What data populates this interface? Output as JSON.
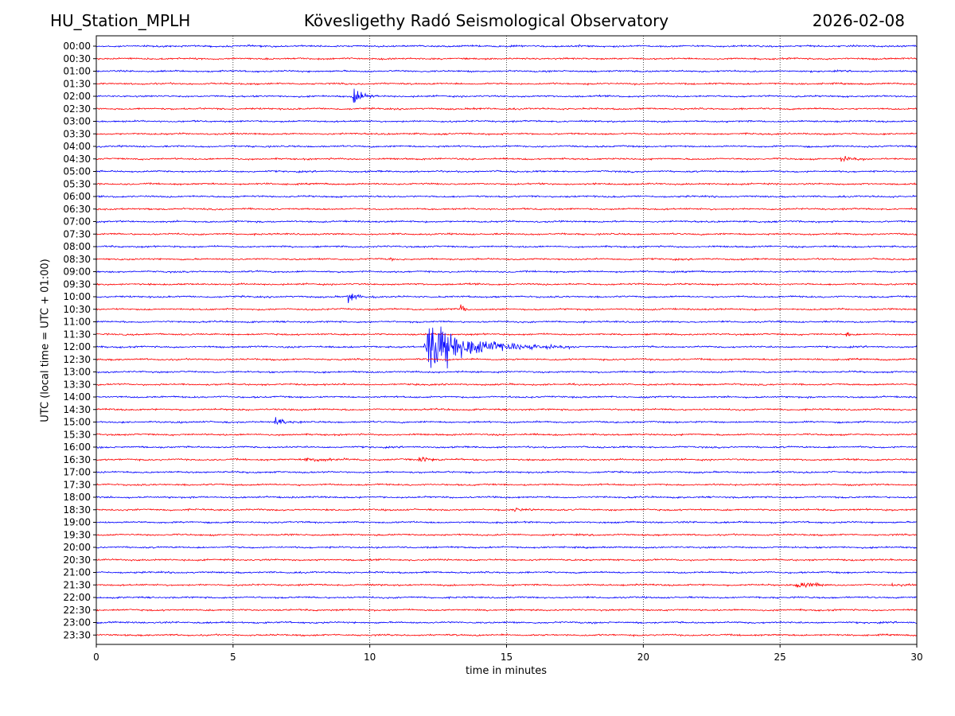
{
  "header": {
    "station": "HU_Station_MPLH",
    "observatory": "Kövesligethy Radó Seismological Observatory",
    "date": "2026-02-08"
  },
  "chart_data": {
    "type": "line",
    "title": "Kövesligethy Radó Seismological Observatory",
    "xlabel": "time in minutes",
    "ylabel": "UTC (local time = UTC + 01:00)",
    "xlim": [
      0,
      30
    ],
    "xticks": [
      0,
      5,
      10,
      15,
      20,
      25,
      30
    ],
    "grid": "vertical dotted at x ticks",
    "trace_colors": [
      "#0000ff",
      "#ff0000"
    ],
    "rows": [
      "00:00",
      "00:30",
      "01:00",
      "01:30",
      "02:00",
      "02:30",
      "03:00",
      "03:30",
      "04:00",
      "04:30",
      "05:00",
      "05:30",
      "06:00",
      "06:30",
      "07:00",
      "07:30",
      "08:00",
      "08:30",
      "09:00",
      "09:30",
      "10:00",
      "10:30",
      "11:00",
      "11:30",
      "12:00",
      "12:30",
      "13:00",
      "13:30",
      "14:00",
      "14:30",
      "15:00",
      "15:30",
      "16:00",
      "16:30",
      "17:00",
      "17:30",
      "18:00",
      "18:30",
      "19:00",
      "19:30",
      "20:00",
      "20:30",
      "21:00",
      "21:30",
      "22:00",
      "22:30",
      "23:00",
      "23:30"
    ],
    "events": [
      {
        "row": "00:00",
        "t": 17.6,
        "amp": 1.4,
        "dur": 0.3
      },
      {
        "row": "02:00",
        "t": 9.4,
        "amp": 5.5,
        "dur": 1.0
      },
      {
        "row": "02:30",
        "t": 13.8,
        "amp": 1.0,
        "dur": 0.5
      },
      {
        "row": "04:30",
        "t": 27.2,
        "amp": 1.6,
        "dur": 2.0
      },
      {
        "row": "08:30",
        "t": 10.7,
        "amp": 2.0,
        "dur": 0.3
      },
      {
        "row": "10:00",
        "t": 9.2,
        "amp": 4.0,
        "dur": 1.0
      },
      {
        "row": "10:30",
        "t": 13.3,
        "amp": 5.0,
        "dur": 0.6
      },
      {
        "row": "11:30",
        "t": 27.4,
        "amp": 2.0,
        "dur": 0.4
      },
      {
        "row": "12:00",
        "t": 12.05,
        "amp": 16.0,
        "dur": 5.5
      },
      {
        "row": "15:00",
        "t": 6.5,
        "amp": 4.5,
        "dur": 1.0
      },
      {
        "row": "16:30",
        "t": 7.6,
        "amp": 1.4,
        "dur": 4.0
      },
      {
        "row": "16:30",
        "t": 11.8,
        "amp": 2.2,
        "dur": 1.5
      },
      {
        "row": "18:30",
        "t": 15.3,
        "amp": 1.0,
        "dur": 1.5
      },
      {
        "row": "21:30",
        "t": 25.6,
        "amp": 2.6,
        "dur": 2.0
      },
      {
        "row": "21:30",
        "t": 29.1,
        "amp": 1.8,
        "dur": 0.9
      }
    ]
  }
}
